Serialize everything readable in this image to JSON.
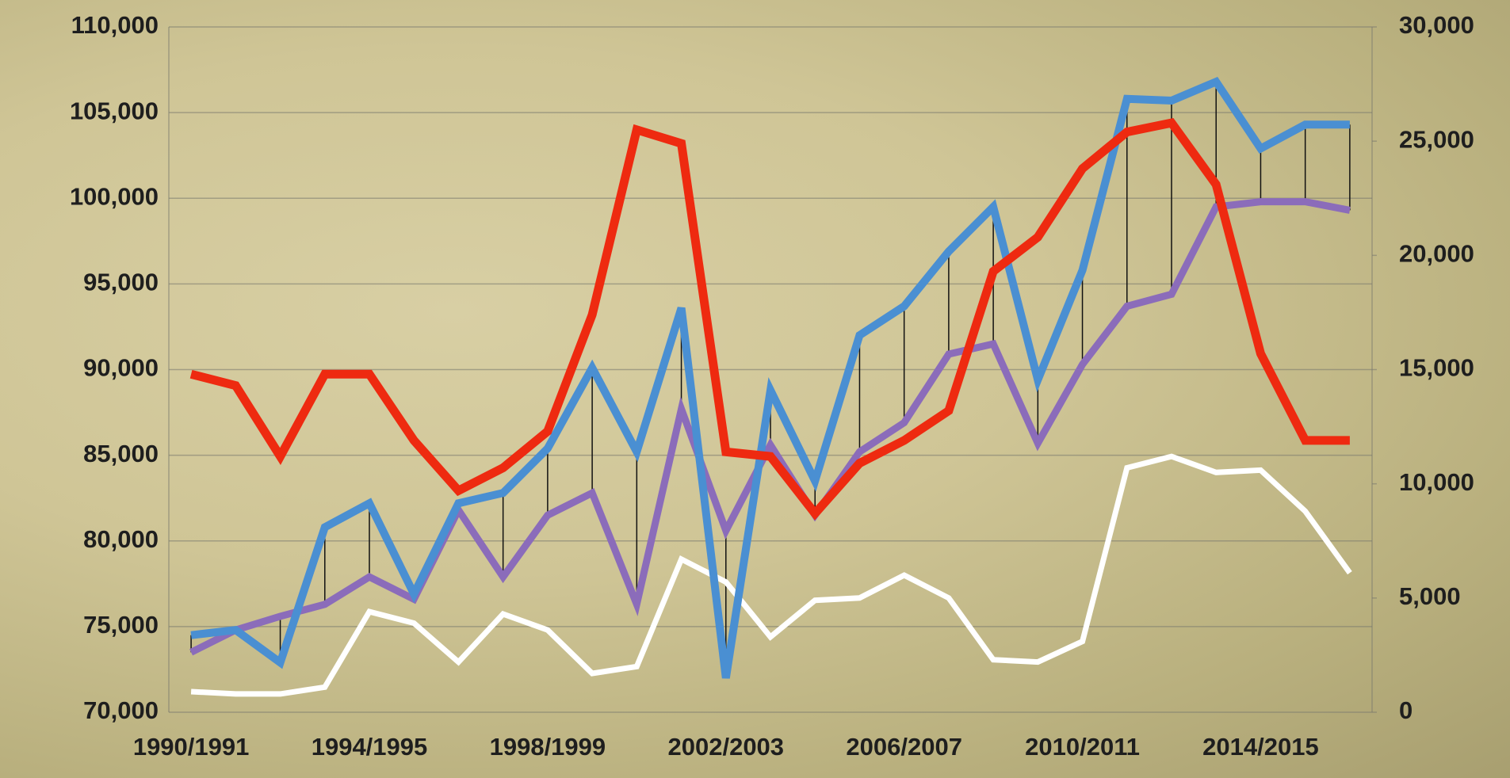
{
  "chart_data": {
    "type": "line",
    "categories": [
      "1990/1991",
      null,
      null,
      null,
      "1994/1995",
      null,
      null,
      null,
      "1998/1999",
      null,
      null,
      null,
      "2002/2003",
      null,
      null,
      null,
      "2006/2007",
      null,
      null,
      null,
      "2010/2011",
      null,
      null,
      null,
      "2014/2015",
      null,
      null
    ],
    "series": [
      {
        "color": "#4a8fd2",
        "axis": "y",
        "values": [
          74500,
          74800,
          72900,
          80800,
          82200,
          76900,
          82200,
          82800,
          85400,
          90100,
          85200,
          93600,
          72000,
          88800,
          83500,
          92000,
          93700,
          96900,
          99500,
          89400,
          95800,
          105800,
          105700,
          106800,
          102900,
          104300,
          104300
        ]
      },
      {
        "color": "#8b6cba",
        "axis": "y",
        "values": [
          73500,
          74800,
          75600,
          76300,
          77900,
          76600,
          81800,
          77900,
          81500,
          82800,
          76300,
          87700,
          80600,
          85600,
          81500,
          85200,
          86900,
          90900,
          91500,
          85700,
          90300,
          93700,
          94400,
          99500,
          99800,
          99800,
          99300
        ]
      },
      {
        "color": "#ee2a10",
        "axis": "y2",
        "values": [
          14800,
          14300,
          11200,
          14800,
          14800,
          11900,
          9700,
          10700,
          12300,
          17400,
          25500,
          24900,
          11400,
          11200,
          8700,
          10900,
          11900,
          13200,
          19300,
          20800,
          23800,
          25400,
          25800,
          23100,
          15700,
          11900,
          11900
        ]
      },
      {
        "color": "#ffffff",
        "axis": "y2",
        "values": [
          900,
          800,
          800,
          1100,
          4400,
          3900,
          2200,
          4300,
          3600,
          1700,
          2000,
          6700,
          5700,
          3300,
          4900,
          5000,
          6000,
          5000,
          2300,
          2200,
          3100,
          10700,
          11200,
          10500,
          10600,
          8800,
          6100
        ]
      }
    ],
    "ylim": [
      70000,
      110000
    ],
    "yticks": [
      {
        "value": 70000,
        "label": "70,000"
      },
      {
        "value": 75000,
        "label": "75,000"
      },
      {
        "value": 80000,
        "label": "80,000"
      },
      {
        "value": 85000,
        "label": "85,000"
      },
      {
        "value": 90000,
        "label": "90,000"
      },
      {
        "value": 95000,
        "label": "95,000"
      },
      {
        "value": 100000,
        "label": "100,000"
      },
      {
        "value": 105000,
        "label": "105,000"
      },
      {
        "value": 110000,
        "label": "110,000"
      }
    ],
    "y2lim": [
      0,
      30000
    ],
    "y2ticks": [
      0,
      {
        "value": 5000,
        "label": "5,000"
      },
      {
        "value": 10000,
        "label": "10,000"
      },
      {
        "value": 15000,
        "label": "15,000"
      },
      {
        "value": 20000,
        "label": "20,000"
      },
      {
        "value": 25000,
        "label": "25,000"
      },
      {
        "value": 30000,
        "label": "30,000"
      }
    ],
    "grid": true,
    "drop_lines": true
  }
}
